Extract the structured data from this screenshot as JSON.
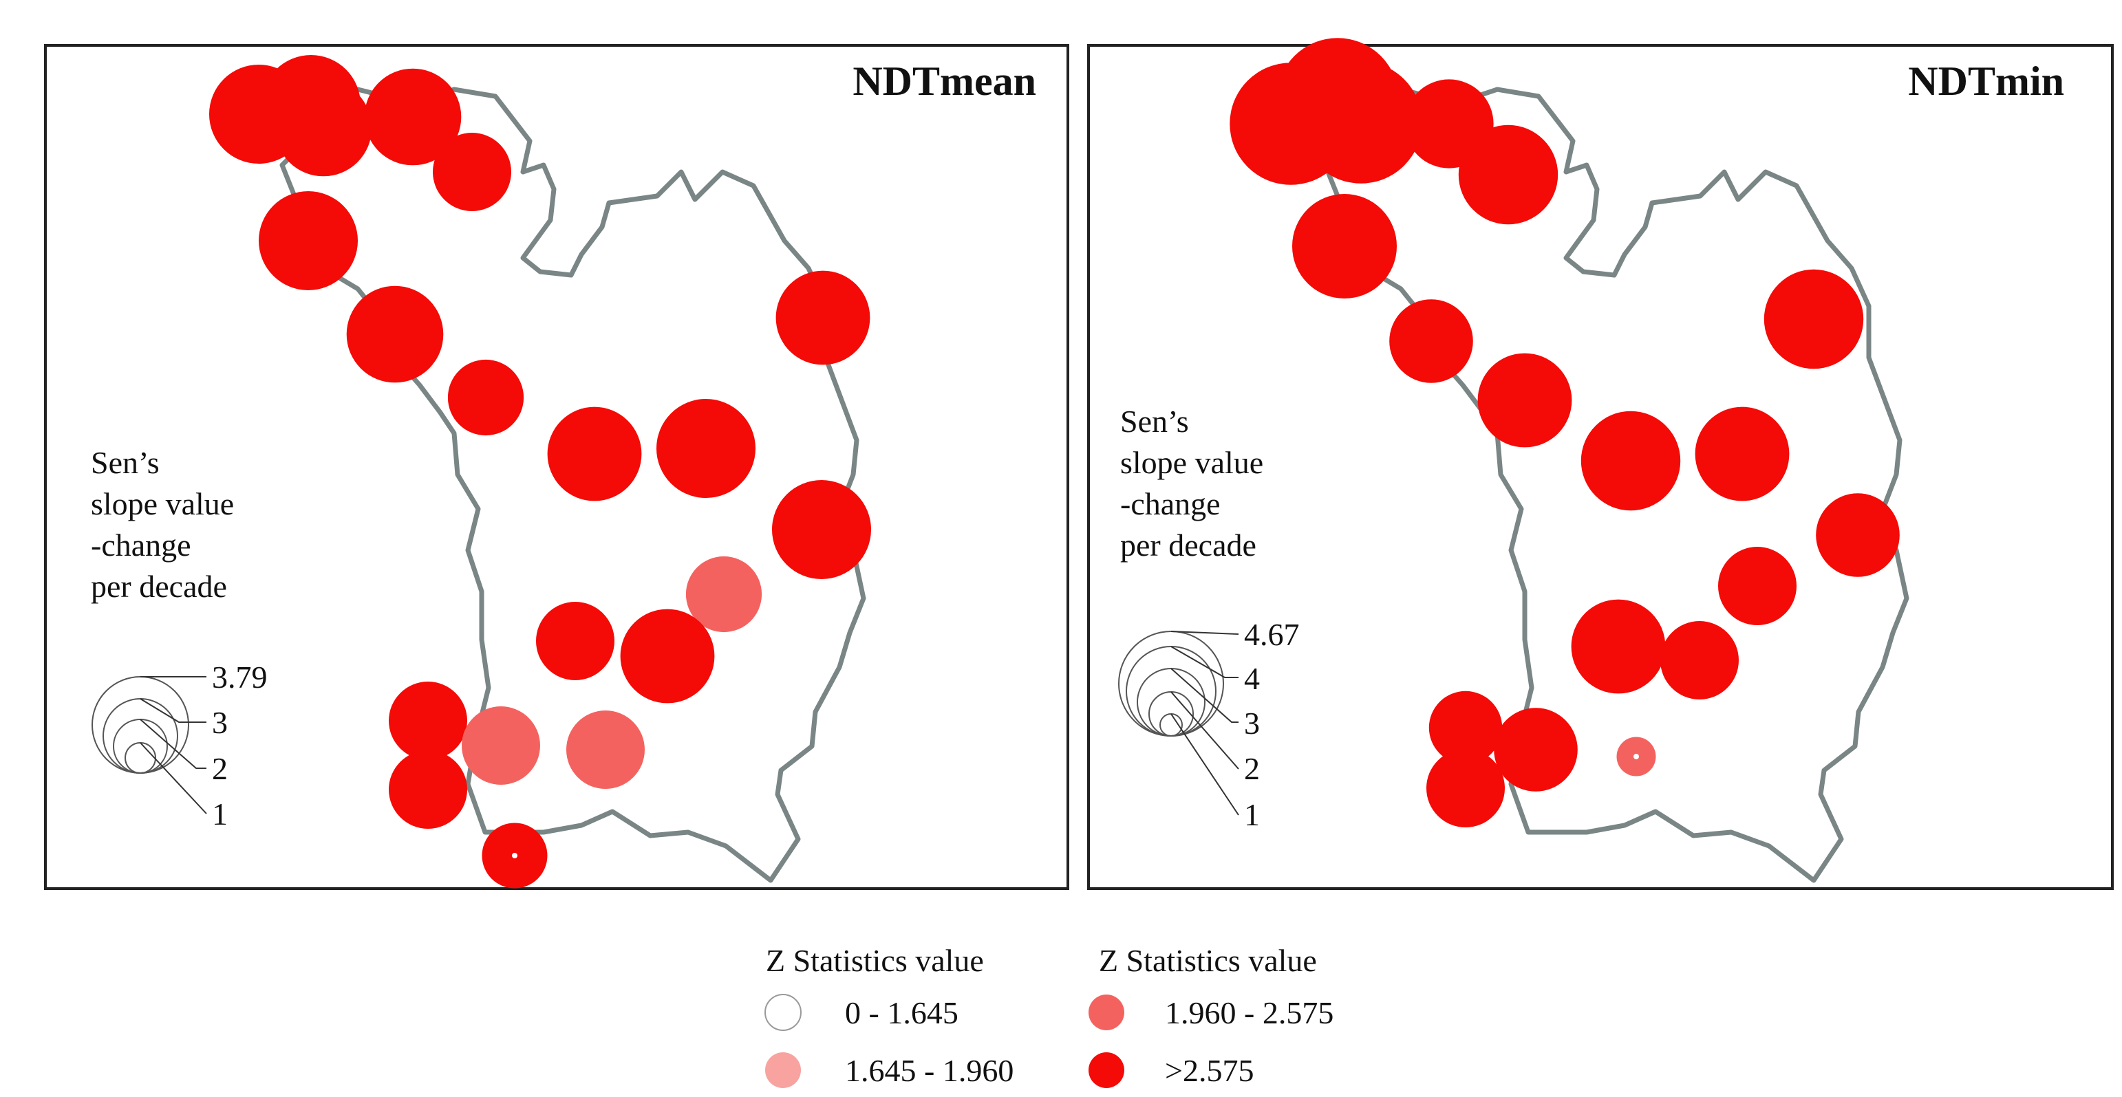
{
  "panels": [
    {
      "title": "NDTmean",
      "legend_title_lines": [
        "Sen’s",
        "slope value",
        "-change",
        "per decade"
      ],
      "size_legend": [
        "3.79",
        "3",
        "2",
        "1"
      ],
      "stations": [
        {
          "class": "gt2575",
          "slope": 3.79
        },
        {
          "class": "gt2575",
          "slope": 3.79
        },
        {
          "class": "gt2575",
          "slope": 3.7
        },
        {
          "class": "gt2575",
          "slope": 3.7
        },
        {
          "class": "gt2575",
          "slope": 3.0
        },
        {
          "class": "gt2575",
          "slope": 3.79
        },
        {
          "class": "gt2575",
          "slope": 3.7
        },
        {
          "class": "gt2575",
          "slope": 2.9
        },
        {
          "class": "gt2575",
          "slope": 3.6
        },
        {
          "class": "gt2575",
          "slope": 3.79
        },
        {
          "class": "gt2575",
          "slope": 3.6
        },
        {
          "class": "gt2575",
          "slope": 3.79
        },
        {
          "class": "z1960_2575",
          "slope": 2.9
        },
        {
          "class": "gt2575",
          "slope": 3.0
        },
        {
          "class": "gt2575",
          "slope": 3.6
        },
        {
          "class": "gt2575",
          "slope": 3.0
        },
        {
          "class": "gt2575",
          "slope": 3.0
        },
        {
          "class": "z1960_2575",
          "slope": 3.0
        },
        {
          "class": "z1960_2575",
          "slope": 3.0
        },
        {
          "class": "gt2575",
          "slope": 2.5
        }
      ]
    },
    {
      "title": "NDTmin",
      "legend_title_lines": [
        "Sen’s",
        "slope value",
        "-change",
        "per decade"
      ],
      "size_legend": [
        "4.67",
        "4",
        "3",
        "2",
        "1"
      ],
      "stations": [
        {
          "class": "gt2575",
          "slope": 4.67
        },
        {
          "class": "gt2575",
          "slope": 4.67
        },
        {
          "class": "gt2575",
          "slope": 4.67
        },
        {
          "class": "gt2575",
          "slope": 3.4
        },
        {
          "class": "gt2575",
          "slope": 3.8
        },
        {
          "class": "gt2575",
          "slope": 4.0
        },
        {
          "class": "gt2575",
          "slope": 3.2
        },
        {
          "class": "gt2575",
          "slope": 3.6
        },
        {
          "class": "gt2575",
          "slope": 3.8
        },
        {
          "class": "gt2575",
          "slope": 3.6
        },
        {
          "class": "gt2575",
          "slope": 3.8
        },
        {
          "class": "gt2575",
          "slope": 3.2
        },
        {
          "class": "gt2575",
          "slope": 3.0
        },
        {
          "class": "gt2575",
          "slope": 3.6
        },
        {
          "class": "gt2575",
          "slope": 3.0
        },
        {
          "class": "gt2575",
          "slope": 2.8
        },
        {
          "class": "gt2575",
          "slope": 3.2
        },
        {
          "class": "gt2575",
          "slope": 3.0
        },
        {
          "class": "z1960_2575",
          "slope": 1.5
        }
      ]
    }
  ],
  "z_legend": {
    "left_title": "Z Statistics value",
    "right_title": "Z Statistics value",
    "classes": {
      "z0_1645": {
        "label": "0 - 1.645",
        "color": "#ffffff"
      },
      "z1645_1960": {
        "label": "1.645 - 1.960",
        "color": "#f8a3a0"
      },
      "z1960_2575": {
        "label": "1.960 - 2.575",
        "color": "#f4625f"
      },
      "gt2575": {
        "label": ">2.575",
        "color": "#f40a06"
      }
    }
  },
  "colors": {
    "frame": "#222222",
    "boundary": "#7a8585"
  }
}
